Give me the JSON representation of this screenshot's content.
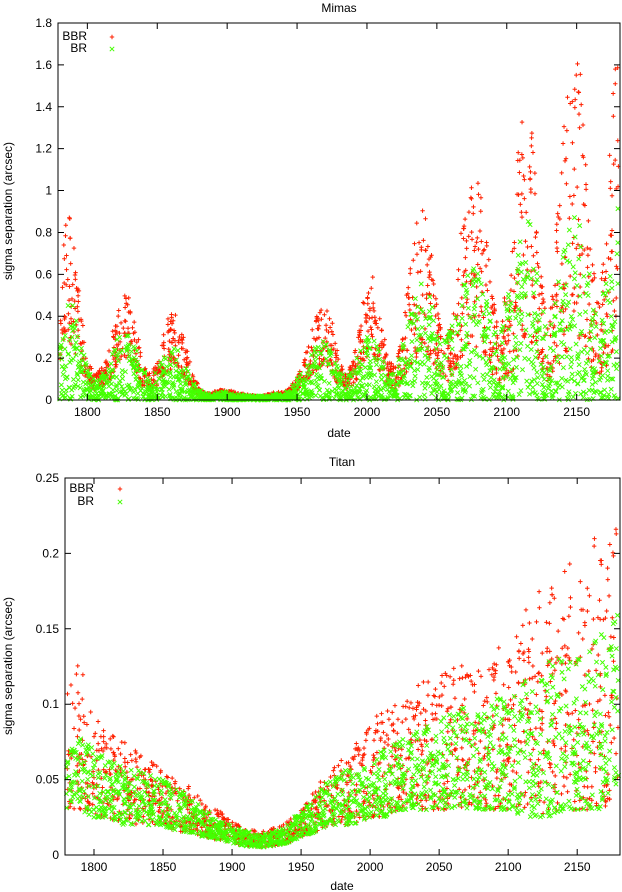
{
  "colors": {
    "BBR": "#ff2000",
    "BR": "#44ff00",
    "axis": "#000000"
  },
  "chart_data": [
    {
      "type": "scatter",
      "title": "Mimas",
      "xlabel": "date",
      "ylabel": "sigma separation (arcsec)",
      "xlim": [
        1779,
        2181
      ],
      "ylim": [
        0,
        1.8
      ],
      "xticks": [
        1800,
        1850,
        1900,
        1950,
        2000,
        2050,
        2100,
        2150
      ],
      "yticks": [
        0,
        0.2,
        0.4,
        0.6,
        0.8,
        1,
        1.2,
        1.4,
        1.6,
        1.8
      ],
      "yticklabels": [
        "0",
        "0.2",
        "0.4",
        "0.6",
        "0.8",
        "1",
        "1.2",
        "1.4",
        "1.6",
        "1.8"
      ],
      "legend": "top-left",
      "grid": false,
      "series": [
        {
          "name": "BBR",
          "marker": "+",
          "x": [
            1780,
            1785,
            1790,
            1795,
            1800,
            1805,
            1810,
            1815,
            1820,
            1825,
            1830,
            1835,
            1840,
            1845,
            1850,
            1855,
            1860,
            1865,
            1870,
            1875,
            1880,
            1885,
            1890,
            1895,
            1900,
            1905,
            1910,
            1915,
            1920,
            1925,
            1930,
            1935,
            1940,
            1945,
            1950,
            1955,
            1960,
            1965,
            1970,
            1975,
            1980,
            1985,
            1990,
            1995,
            2000,
            2005,
            2010,
            2015,
            2020,
            2025,
            2030,
            2035,
            2040,
            2045,
            2050,
            2055,
            2060,
            2065,
            2070,
            2075,
            2080,
            2085,
            2090,
            2095,
            2100,
            2105,
            2110,
            2115,
            2120,
            2125,
            2130,
            2135,
            2140,
            2145,
            2150,
            2155,
            2160,
            2165,
            2170,
            2175,
            2180
          ],
          "y_max": [
            0.3,
            1.0,
            0.8,
            0.45,
            0.2,
            0.12,
            0.15,
            0.22,
            0.4,
            0.52,
            0.5,
            0.35,
            0.18,
            0.12,
            0.18,
            0.35,
            0.44,
            0.42,
            0.3,
            0.15,
            0.06,
            0.03,
            0.04,
            0.05,
            0.05,
            0.04,
            0.03,
            0.03,
            0.02,
            0.02,
            0.03,
            0.04,
            0.04,
            0.06,
            0.12,
            0.2,
            0.32,
            0.42,
            0.47,
            0.38,
            0.2,
            0.12,
            0.2,
            0.4,
            0.55,
            0.62,
            0.4,
            0.2,
            0.15,
            0.3,
            0.6,
            0.85,
            0.95,
            0.8,
            0.45,
            0.25,
            0.4,
            0.7,
            0.95,
            1.05,
            1.08,
            0.85,
            0.5,
            0.3,
            0.6,
            1.0,
            1.3,
            1.48,
            1.2,
            0.6,
            0.3,
            0.8,
            1.3,
            1.6,
            1.75,
            1.4,
            0.8,
            0.45,
            0.7,
            1.4,
            1.75
          ],
          "y_min": [
            0.1,
            0.3,
            0.25,
            0.15,
            0.08,
            0.05,
            0.06,
            0.08,
            0.15,
            0.2,
            0.2,
            0.12,
            0.06,
            0.05,
            0.07,
            0.12,
            0.15,
            0.15,
            0.1,
            0.05,
            0.02,
            0.01,
            0.02,
            0.03,
            0.03,
            0.02,
            0.02,
            0.01,
            0.01,
            0.01,
            0.01,
            0.02,
            0.02,
            0.03,
            0.05,
            0.08,
            0.12,
            0.15,
            0.18,
            0.12,
            0.07,
            0.05,
            0.07,
            0.12,
            0.18,
            0.2,
            0.12,
            0.07,
            0.05,
            0.08,
            0.15,
            0.2,
            0.25,
            0.2,
            0.12,
            0.08,
            0.1,
            0.15,
            0.2,
            0.25,
            0.25,
            0.2,
            0.12,
            0.08,
            0.1,
            0.15,
            0.25,
            0.3,
            0.25,
            0.15,
            0.08,
            0.12,
            0.2,
            0.25,
            0.3,
            0.25,
            0.15,
            0.1,
            0.15,
            0.2,
            0.3
          ]
        },
        {
          "name": "BR",
          "marker": "x",
          "x": [
            1780,
            1785,
            1790,
            1795,
            1800,
            1805,
            1810,
            1815,
            1820,
            1825,
            1830,
            1835,
            1840,
            1845,
            1850,
            1855,
            1860,
            1865,
            1870,
            1875,
            1880,
            1885,
            1890,
            1895,
            1900,
            1905,
            1910,
            1915,
            1920,
            1925,
            1930,
            1935,
            1940,
            1945,
            1950,
            1955,
            1960,
            1965,
            1970,
            1975,
            1980,
            1985,
            1990,
            1995,
            2000,
            2005,
            2010,
            2015,
            2020,
            2025,
            2030,
            2035,
            2040,
            2045,
            2050,
            2055,
            2060,
            2065,
            2070,
            2075,
            2080,
            2085,
            2090,
            2095,
            2100,
            2105,
            2110,
            2115,
            2120,
            2125,
            2130,
            2135,
            2140,
            2145,
            2150,
            2155,
            2160,
            2165,
            2170,
            2175,
            2180
          ],
          "y_max": [
            0.25,
            0.5,
            0.45,
            0.3,
            0.15,
            0.1,
            0.12,
            0.2,
            0.28,
            0.32,
            0.33,
            0.25,
            0.15,
            0.1,
            0.14,
            0.22,
            0.26,
            0.24,
            0.18,
            0.1,
            0.05,
            0.03,
            0.03,
            0.04,
            0.04,
            0.03,
            0.03,
            0.02,
            0.02,
            0.02,
            0.02,
            0.03,
            0.03,
            0.05,
            0.1,
            0.15,
            0.22,
            0.27,
            0.3,
            0.25,
            0.15,
            0.1,
            0.15,
            0.25,
            0.3,
            0.3,
            0.22,
            0.15,
            0.12,
            0.25,
            0.4,
            0.5,
            0.6,
            0.5,
            0.35,
            0.3,
            0.35,
            0.45,
            0.6,
            0.65,
            0.6,
            0.5,
            0.35,
            0.3,
            0.5,
            0.65,
            0.8,
            0.9,
            0.75,
            0.45,
            0.35,
            0.6,
            0.75,
            0.85,
            0.9,
            0.8,
            0.6,
            0.45,
            0.55,
            0.75,
            0.95
          ],
          "y_min": 0
        }
      ]
    },
    {
      "type": "scatter",
      "title": "Titan",
      "xlabel": "date",
      "ylabel": "sigma separation (arcsec)",
      "xlim": [
        1779,
        2181
      ],
      "ylim": [
        0,
        0.25
      ],
      "xticks": [
        1800,
        1850,
        1900,
        1950,
        2000,
        2050,
        2100,
        2150
      ],
      "yticks": [
        0,
        0.05,
        0.1,
        0.15,
        0.2,
        0.25
      ],
      "yticklabels": [
        "0",
        "0.05",
        "0.1",
        "0.15",
        "0.2",
        "0.25"
      ],
      "legend": "top-left",
      "grid": false,
      "series": [
        {
          "name": "BBR",
          "marker": "+",
          "x": [
            1780,
            1790,
            1800,
            1810,
            1820,
            1830,
            1840,
            1850,
            1860,
            1870,
            1880,
            1890,
            1900,
            1910,
            1920,
            1930,
            1940,
            1950,
            1960,
            1970,
            1980,
            1990,
            2000,
            2010,
            2020,
            2030,
            2040,
            2050,
            2060,
            2070,
            2080,
            2090,
            2100,
            2110,
            2120,
            2130,
            2140,
            2150,
            2160,
            2170,
            2180
          ],
          "y_max": [
            0.11,
            0.13,
            0.09,
            0.085,
            0.08,
            0.07,
            0.065,
            0.055,
            0.05,
            0.045,
            0.035,
            0.03,
            0.022,
            0.018,
            0.015,
            0.018,
            0.022,
            0.03,
            0.045,
            0.055,
            0.065,
            0.075,
            0.085,
            0.1,
            0.1,
            0.11,
            0.12,
            0.12,
            0.125,
            0.13,
            0.13,
            0.14,
            0.15,
            0.16,
            0.18,
            0.18,
            0.19,
            0.2,
            0.215,
            0.2,
            0.24
          ],
          "y_min": [
            0.03,
            0.03,
            0.025,
            0.025,
            0.02,
            0.02,
            0.02,
            0.02,
            0.015,
            0.015,
            0.012,
            0.01,
            0.008,
            0.006,
            0.005,
            0.006,
            0.008,
            0.012,
            0.015,
            0.02,
            0.02,
            0.02,
            0.025,
            0.025,
            0.03,
            0.03,
            0.03,
            0.03,
            0.03,
            0.03,
            0.03,
            0.03,
            0.03,
            0.025,
            0.025,
            0.025,
            0.03,
            0.03,
            0.03,
            0.03,
            0.05
          ]
        },
        {
          "name": "BR",
          "marker": "x",
          "x": [
            1780,
            1790,
            1800,
            1810,
            1820,
            1830,
            1840,
            1850,
            1860,
            1870,
            1880,
            1890,
            1900,
            1910,
            1920,
            1930,
            1940,
            1950,
            1960,
            1970,
            1980,
            1990,
            2000,
            2010,
            2020,
            2030,
            2040,
            2050,
            2060,
            2070,
            2080,
            2090,
            2100,
            2110,
            2120,
            2130,
            2140,
            2150,
            2160,
            2170,
            2180
          ],
          "y_max": [
            0.07,
            0.08,
            0.07,
            0.065,
            0.06,
            0.06,
            0.055,
            0.05,
            0.045,
            0.04,
            0.03,
            0.025,
            0.02,
            0.016,
            0.014,
            0.016,
            0.02,
            0.03,
            0.04,
            0.05,
            0.055,
            0.06,
            0.065,
            0.07,
            0.075,
            0.08,
            0.085,
            0.09,
            0.095,
            0.1,
            0.1,
            0.105,
            0.11,
            0.115,
            0.12,
            0.13,
            0.13,
            0.14,
            0.14,
            0.15,
            0.17
          ],
          "y_min": [
            0.03,
            0.03,
            0.025,
            0.025,
            0.02,
            0.02,
            0.02,
            0.02,
            0.015,
            0.015,
            0.012,
            0.01,
            0.008,
            0.006,
            0.005,
            0.006,
            0.008,
            0.012,
            0.015,
            0.02,
            0.02,
            0.02,
            0.025,
            0.025,
            0.03,
            0.03,
            0.03,
            0.03,
            0.03,
            0.03,
            0.03,
            0.03,
            0.03,
            0.025,
            0.025,
            0.025,
            0.03,
            0.03,
            0.03,
            0.03,
            0.05
          ]
        }
      ]
    }
  ]
}
